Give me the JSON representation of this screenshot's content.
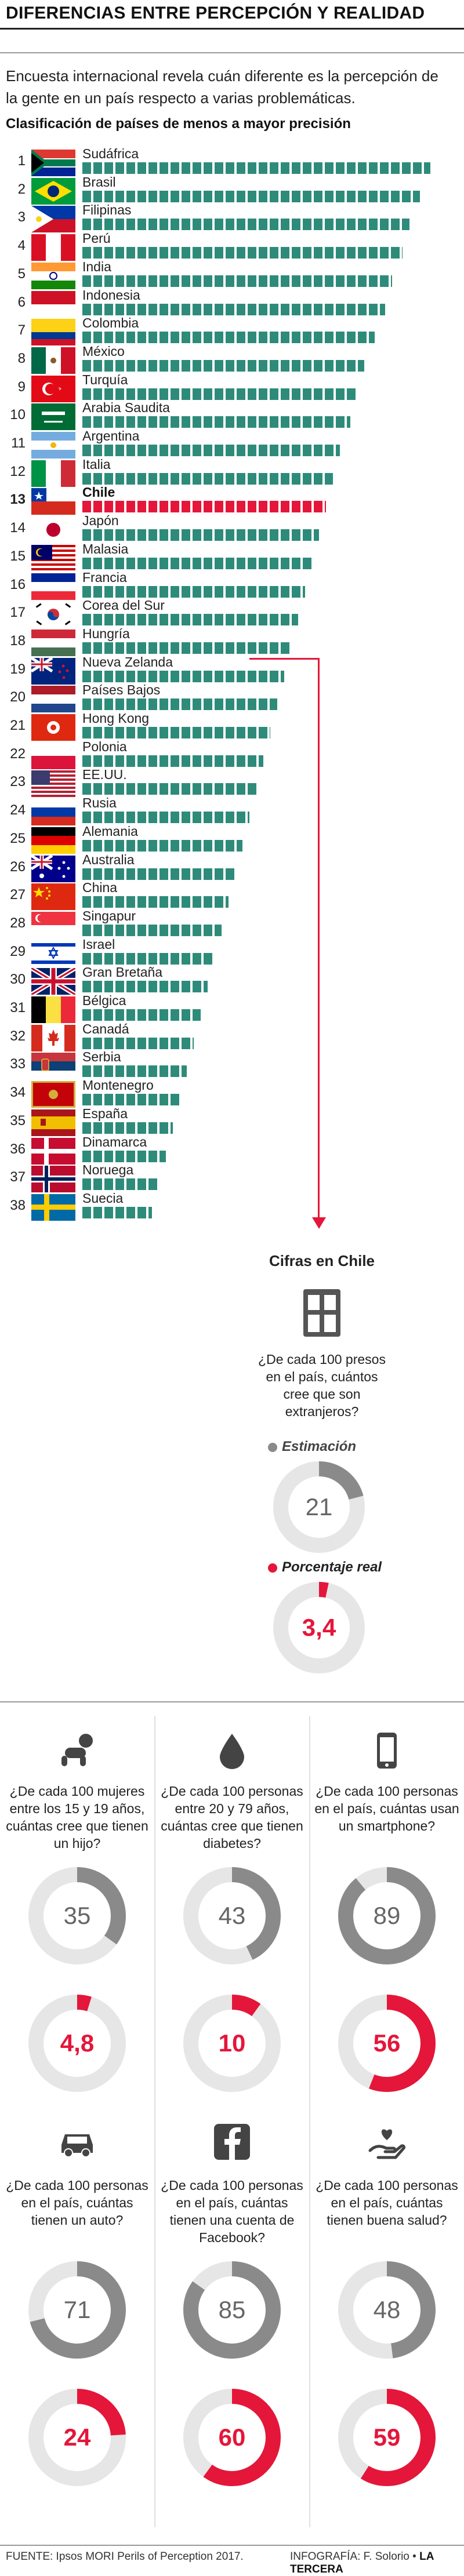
{
  "header": {
    "title": "DIFERENCIAS ENTRE PERCEPCIÓN Y REALIDAD",
    "intro": "Encuesta internacional revela cuán diferente es la percepción de la gente en un país respecto a varias problemáticas.",
    "subtitle": "Clasificación de países de menos a mayor precisión"
  },
  "ranking": [
    {
      "rank": "1",
      "name": "Sudáfrica",
      "flag": "za-flag",
      "bar": 1.0
    },
    {
      "rank": "2",
      "name": "Brasil",
      "flag": "br-flag",
      "bar": 0.97
    },
    {
      "rank": "3",
      "name": "Filipinas",
      "flag": "ph-flag",
      "bar": 0.94
    },
    {
      "rank": "4",
      "name": "Perú",
      "flag": "pe-flag",
      "bar": 0.92
    },
    {
      "rank": "5",
      "name": "India",
      "flag": "in-flag",
      "bar": 0.89
    },
    {
      "rank": "6",
      "name": "Indonesia",
      "flag": "id-flag",
      "bar": 0.87
    },
    {
      "rank": "7",
      "name": "Colombia",
      "flag": "co-flag",
      "bar": 0.84
    },
    {
      "rank": "8",
      "name": "México",
      "flag": "mx-flag",
      "bar": 0.81
    },
    {
      "rank": "9",
      "name": "Turquía",
      "flag": "tr-flag",
      "bar": 0.79
    },
    {
      "rank": "10",
      "name": "Arabia Saudita",
      "flag": "sa-flag",
      "bar": 0.77
    },
    {
      "rank": "11",
      "name": "Argentina",
      "flag": "ar-flag",
      "bar": 0.74
    },
    {
      "rank": "12",
      "name": "Italia",
      "flag": "it-flag",
      "bar": 0.72
    },
    {
      "rank": "13",
      "name": "Chile",
      "flag": "cl-flag",
      "bar": 0.7,
      "highlight": true
    },
    {
      "rank": "14",
      "name": "Japón",
      "flag": "jp-flag",
      "bar": 0.68
    },
    {
      "rank": "15",
      "name": "Malasia",
      "flag": "my-flag",
      "bar": 0.66
    },
    {
      "rank": "16",
      "name": "Francia",
      "flag": "fr-flag",
      "bar": 0.64
    },
    {
      "rank": "17",
      "name": "Corea del Sur",
      "flag": "kr-flag",
      "bar": 0.62
    },
    {
      "rank": "18",
      "name": "Hungría",
      "flag": "hu-flag",
      "bar": 0.6
    },
    {
      "rank": "19",
      "name": "Nueva Zelanda",
      "flag": "nz-flag",
      "bar": 0.58
    },
    {
      "rank": "20",
      "name": "Países Bajos",
      "flag": "nl-flag",
      "bar": 0.56
    },
    {
      "rank": "21",
      "name": "Hong Kong",
      "flag": "hk-flag",
      "bar": 0.54
    },
    {
      "rank": "22",
      "name": "Polonia",
      "flag": "pl-flag",
      "bar": 0.52
    },
    {
      "rank": "23",
      "name": "EE.UU.",
      "flag": "us-flag",
      "bar": 0.5
    },
    {
      "rank": "24",
      "name": "Rusia",
      "flag": "ru-flag",
      "bar": 0.48
    },
    {
      "rank": "25",
      "name": "Alemania",
      "flag": "de-flag",
      "bar": 0.46
    },
    {
      "rank": "26",
      "name": "Australia",
      "flag": "au-flag",
      "bar": 0.44
    },
    {
      "rank": "27",
      "name": "China",
      "flag": "cn-flag",
      "bar": 0.42
    },
    {
      "rank": "28",
      "name": "Singapur",
      "flag": "sg-flag",
      "bar": 0.4
    },
    {
      "rank": "29",
      "name": "Israel",
      "flag": "il-flag",
      "bar": 0.38
    },
    {
      "rank": "30",
      "name": "Gran Bretaña",
      "flag": "gb-flag",
      "bar": 0.36
    },
    {
      "rank": "31",
      "name": "Bélgica",
      "flag": "be-flag",
      "bar": 0.34
    },
    {
      "rank": "32",
      "name": "Canadá",
      "flag": "ca-flag",
      "bar": 0.32
    },
    {
      "rank": "33",
      "name": "Serbia",
      "flag": "rs-flag",
      "bar": 0.3
    },
    {
      "rank": "34",
      "name": "Montenegro",
      "flag": "me-flag",
      "bar": 0.28
    },
    {
      "rank": "35",
      "name": "España",
      "flag": "es-flag",
      "bar": 0.26
    },
    {
      "rank": "36",
      "name": "Dinamarca",
      "flag": "dk-flag",
      "bar": 0.24
    },
    {
      "rank": "37",
      "name": "Noruega",
      "flag": "no-flag",
      "bar": 0.22
    },
    {
      "rank": "38",
      "name": "Suecia",
      "flag": "se-flag",
      "bar": 0.2
    }
  ],
  "chile": {
    "title": "Cifras en Chile",
    "icon": "building-icon",
    "question": "¿De cada 100 presos en el país, cuántos cree que son extranjeros?",
    "legend_estimate": "Estimación",
    "legend_real": "Porcentaje real",
    "estimate": 21,
    "estimate_label": "21",
    "real": 3.4,
    "real_label": "3,4"
  },
  "panels": [
    {
      "icon": "baby-icon",
      "question": "¿De cada 100 mujeres entre los 15 y 19 años, cuántas cree que tienen un hijo?",
      "estimate": 35,
      "estimate_label": "35",
      "real": 4.8,
      "real_label": "4,8"
    },
    {
      "icon": "drop-icon",
      "question": "¿De cada 100 personas entre 20 y 79 años, cuántas cree que tienen diabetes?",
      "estimate": 43,
      "estimate_label": "43",
      "real": 10,
      "real_label": "10"
    },
    {
      "icon": "smartphone-icon",
      "question": "¿De cada 100 personas en el país, cuántas usan un smartphone?",
      "estimate": 89,
      "estimate_label": "89",
      "real": 56,
      "real_label": "56"
    },
    {
      "icon": "car-icon",
      "question": "¿De cada 100 personas en el país, cuántas tienen un auto?",
      "estimate": 71,
      "estimate_label": "71",
      "real": 24,
      "real_label": "24"
    },
    {
      "icon": "facebook-icon",
      "question": "¿De cada 100 personas en el país, cuántas tienen una cuenta de Facebook?",
      "estimate": 85,
      "estimate_label": "85",
      "real": 60,
      "real_label": "60"
    },
    {
      "icon": "heart-hand-icon",
      "question": "¿De cada 100 personas en el país, cuántas tienen buena salud?",
      "estimate": 48,
      "estimate_label": "48",
      "real": 59,
      "real_label": "59"
    }
  ],
  "footer": {
    "source": "FUENTE: Ipsos MORI Perils of Perception 2017.",
    "credit_label": "INFOGRAFÍA: F. Solorio • ",
    "credit_brand": "LA TERCERA"
  },
  "colors": {
    "bar": "#2e8b7a",
    "accent": "#e4163a",
    "estimate": "#8a8a8a",
    "track": "#e6e6e6"
  }
}
